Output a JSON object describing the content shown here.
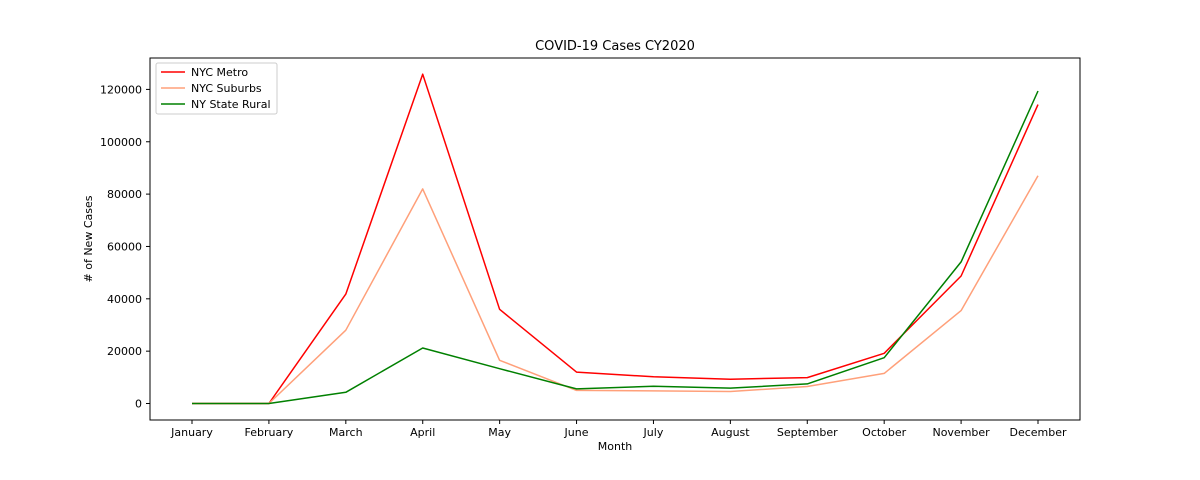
{
  "chart_data": {
    "type": "line",
    "title": "COVID-19 Cases CY2020",
    "xlabel": "Month",
    "ylabel": "# of New Cases",
    "categories": [
      "January",
      "February",
      "March",
      "April",
      "May",
      "June",
      "July",
      "August",
      "September",
      "October",
      "November",
      "December"
    ],
    "ylim": [
      -6300,
      132000
    ],
    "yticks": [
      0,
      20000,
      40000,
      60000,
      80000,
      100000,
      120000
    ],
    "grid": false,
    "legend_position": "top-left",
    "series": [
      {
        "name": "NYC Metro",
        "color": "#ff0000",
        "values": [
          0,
          0,
          41800,
          125800,
          36000,
          12000,
          10200,
          9300,
          9900,
          19200,
          48700,
          114200
        ]
      },
      {
        "name": "NYC Suburbs",
        "color": "#ffa07a",
        "values": [
          0,
          0,
          28000,
          82000,
          16500,
          5000,
          4800,
          4600,
          6500,
          11500,
          35500,
          87000
        ]
      },
      {
        "name": "NY State Rural",
        "color": "#008000",
        "values": [
          0,
          0,
          4300,
          21200,
          13300,
          5600,
          6600,
          5900,
          7500,
          17500,
          54100,
          119400
        ]
      }
    ]
  }
}
